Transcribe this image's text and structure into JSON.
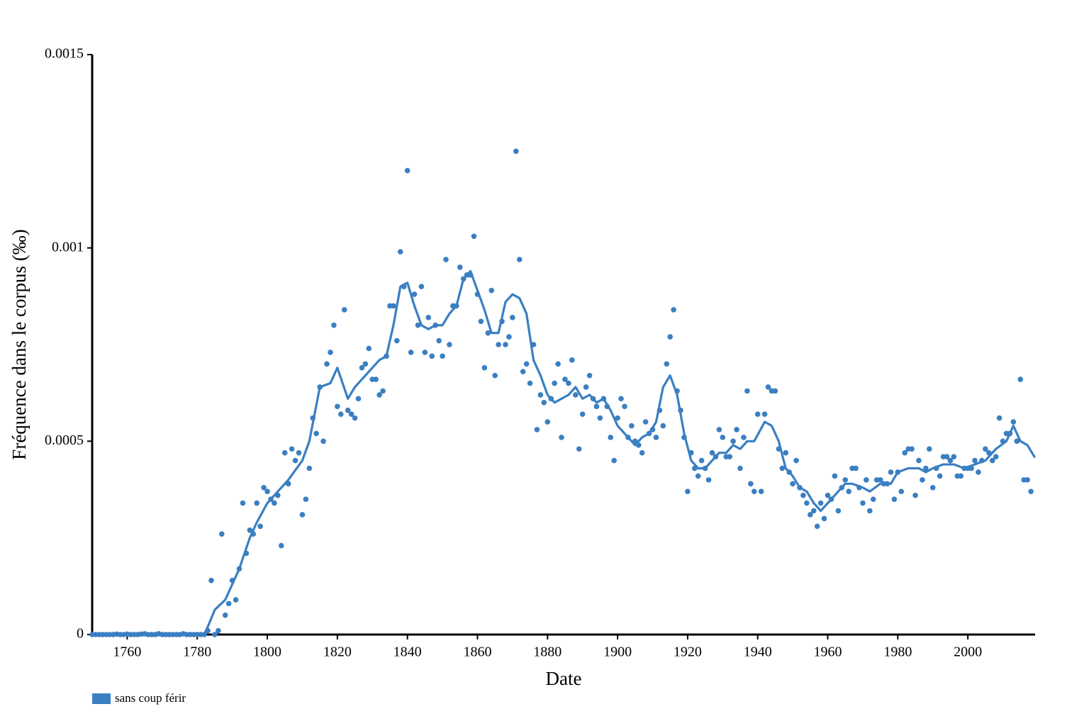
{
  "chart_data": {
    "type": "scatter-line",
    "xlabel": "Date",
    "ylabel": "Fréquence dans le corpus (‰)",
    "xlim": [
      1750,
      2019
    ],
    "xticks": [
      1760,
      1780,
      1800,
      1820,
      1840,
      1860,
      1880,
      1900,
      1920,
      1940,
      1960,
      1980,
      2000
    ],
    "ylim": [
      0,
      0.0015
    ],
    "yticks": [
      0,
      0.0005,
      0.001,
      0.0015
    ],
    "series": [
      {
        "name": "sans coup férir",
        "color": "#3a7fc1",
        "x": [
          1750,
          1751,
          1752,
          1753,
          1754,
          1755,
          1756,
          1757,
          1758,
          1759,
          1760,
          1761,
          1762,
          1763,
          1764,
          1765,
          1766,
          1767,
          1768,
          1769,
          1770,
          1771,
          1772,
          1773,
          1774,
          1775,
          1776,
          1777,
          1778,
          1779,
          1780,
          1781,
          1782,
          1783,
          1784,
          1785,
          1786,
          1787,
          1788,
          1789,
          1790,
          1791,
          1792,
          1793,
          1794,
          1795,
          1796,
          1797,
          1798,
          1799,
          1800,
          1801,
          1802,
          1803,
          1804,
          1805,
          1806,
          1807,
          1808,
          1809,
          1810,
          1811,
          1812,
          1813,
          1814,
          1815,
          1816,
          1817,
          1818,
          1819,
          1820,
          1821,
          1822,
          1823,
          1824,
          1825,
          1826,
          1827,
          1828,
          1829,
          1830,
          1831,
          1832,
          1833,
          1834,
          1835,
          1836,
          1837,
          1838,
          1839,
          1840,
          1841,
          1842,
          1843,
          1844,
          1845,
          1846,
          1847,
          1848,
          1849,
          1850,
          1851,
          1852,
          1853,
          1854,
          1855,
          1856,
          1857,
          1858,
          1859,
          1860,
          1861,
          1862,
          1863,
          1864,
          1865,
          1866,
          1867,
          1868,
          1869,
          1870,
          1871,
          1872,
          1873,
          1874,
          1875,
          1876,
          1877,
          1878,
          1879,
          1880,
          1881,
          1882,
          1883,
          1884,
          1885,
          1886,
          1887,
          1888,
          1889,
          1890,
          1891,
          1892,
          1893,
          1894,
          1895,
          1896,
          1897,
          1898,
          1899,
          1900,
          1901,
          1902,
          1903,
          1904,
          1905,
          1906,
          1907,
          1908,
          1909,
          1910,
          1911,
          1912,
          1913,
          1914,
          1915,
          1916,
          1917,
          1918,
          1919,
          1920,
          1921,
          1922,
          1923,
          1924,
          1925,
          1926,
          1927,
          1928,
          1929,
          1930,
          1931,
          1932,
          1933,
          1934,
          1935,
          1936,
          1937,
          1938,
          1939,
          1940,
          1941,
          1942,
          1943,
          1944,
          1945,
          1946,
          1947,
          1948,
          1949,
          1950,
          1951,
          1952,
          1953,
          1954,
          1955,
          1956,
          1957,
          1958,
          1959,
          1960,
          1961,
          1962,
          1963,
          1964,
          1965,
          1966,
          1967,
          1968,
          1969,
          1970,
          1971,
          1972,
          1973,
          1974,
          1975,
          1976,
          1977,
          1978,
          1979,
          1980,
          1981,
          1982,
          1983,
          1984,
          1985,
          1986,
          1987,
          1988,
          1989,
          1990,
          1991,
          1992,
          1993,
          1994,
          1995,
          1996,
          1997,
          1998,
          1999,
          2000,
          2001,
          2002,
          2003,
          2004,
          2005,
          2006,
          2007,
          2008,
          2009,
          2010,
          2011,
          2012,
          2013,
          2014,
          2015,
          2016,
          2017,
          2018
        ],
        "values": [
          0,
          0,
          0,
          0,
          0,
          0,
          0,
          1e-06,
          0,
          0,
          1e-06,
          0,
          0,
          0,
          1e-06,
          2e-06,
          0,
          0,
          0,
          2e-06,
          0,
          0,
          0,
          0,
          0,
          0,
          2e-06,
          0,
          0,
          0,
          0,
          0,
          0,
          1e-05,
          0.00014,
          0,
          1e-05,
          0.00026,
          5e-05,
          8e-05,
          0.00014,
          9e-05,
          0.00017,
          0.00034,
          0.00021,
          0.00027,
          0.00026,
          0.00034,
          0.00028,
          0.00038,
          0.00037,
          0.00035,
          0.00034,
          0.00036,
          0.00023,
          0.00047,
          0.00039,
          0.00048,
          0.00045,
          0.00047,
          0.00031,
          0.00035,
          0.00043,
          0.00056,
          0.00052,
          0.00064,
          0.0005,
          0.0007,
          0.00073,
          0.0008,
          0.00059,
          0.00057,
          0.00084,
          0.00058,
          0.00057,
          0.00056,
          0.00061,
          0.00069,
          0.0007,
          0.00074,
          0.00066,
          0.00066,
          0.00062,
          0.00063,
          0.00072,
          0.00085,
          0.00085,
          0.00076,
          0.00099,
          0.0009,
          0.0012,
          0.00073,
          0.00088,
          0.0008,
          0.0009,
          0.00073,
          0.00082,
          0.00072,
          0.0008,
          0.00076,
          0.00072,
          0.00097,
          0.00075,
          0.00085,
          0.00085,
          0.00095,
          0.00092,
          0.00093,
          0.00093,
          0.00103,
          0.00088,
          0.00081,
          0.00069,
          0.00078,
          0.00089,
          0.00067,
          0.00075,
          0.00081,
          0.00075,
          0.00077,
          0.00082,
          0.00125,
          0.00097,
          0.00068,
          0.0007,
          0.00065,
          0.00075,
          0.00053,
          0.00062,
          0.0006,
          0.00055,
          0.00061,
          0.00065,
          0.0007,
          0.00051,
          0.00066,
          0.00065,
          0.00071,
          0.00062,
          0.00048,
          0.00057,
          0.00064,
          0.00067,
          0.00061,
          0.00059,
          0.00056,
          0.00061,
          0.00059,
          0.00051,
          0.00045,
          0.00056,
          0.00061,
          0.00059,
          0.00051,
          0.00054,
          0.0005,
          0.00049,
          0.00047,
          0.00055,
          0.00052,
          0.00053,
          0.00051,
          0.00058,
          0.00054,
          0.0007,
          0.00077,
          0.00084,
          0.00063,
          0.00058,
          0.00051,
          0.00037,
          0.00047,
          0.00043,
          0.00041,
          0.00045,
          0.00043,
          0.0004,
          0.00047,
          0.00046,
          0.00053,
          0.00051,
          0.00046,
          0.00046,
          0.0005,
          0.00053,
          0.00043,
          0.00051,
          0.00063,
          0.00039,
          0.00037,
          0.00057,
          0.00037,
          0.00057,
          0.00064,
          0.00063,
          0.00063,
          0.00048,
          0.00043,
          0.00047,
          0.00042,
          0.00039,
          0.00045,
          0.00038,
          0.00036,
          0.00034,
          0.00031,
          0.00032,
          0.00028,
          0.00034,
          0.0003,
          0.00036,
          0.00035,
          0.00041,
          0.00032,
          0.00038,
          0.0004,
          0.00037,
          0.00043,
          0.00043,
          0.00038,
          0.00034,
          0.0004,
          0.00032,
          0.00035,
          0.0004,
          0.0004,
          0.00039,
          0.00039,
          0.00042,
          0.00035,
          0.00042,
          0.00037,
          0.00047,
          0.00048,
          0.00048,
          0.00036,
          0.00045,
          0.0004,
          0.00043,
          0.00048,
          0.00038,
          0.00043,
          0.00041,
          0.00046,
          0.00046,
          0.00045,
          0.00046,
          0.00041,
          0.00041,
          0.00043,
          0.00043,
          0.00043,
          0.00045,
          0.00042,
          0.00045,
          0.00048,
          0.00047,
          0.00045,
          0.00046,
          0.00056,
          0.0005,
          0.00052,
          0.00052,
          0.00055,
          0.0005,
          0.00066,
          0.0004,
          0.0004,
          0.00037
        ],
        "line_x": [
          1750,
          1770,
          1782,
          1783,
          1785,
          1788,
          1790,
          1792,
          1795,
          1797,
          1800,
          1803,
          1806,
          1810,
          1812,
          1815,
          1818,
          1820,
          1823,
          1825,
          1828,
          1832,
          1834,
          1836,
          1838,
          1840,
          1842,
          1844,
          1846,
          1848,
          1850,
          1852,
          1854,
          1856,
          1858,
          1860,
          1862,
          1864,
          1866,
          1868,
          1870,
          1872,
          1874,
          1876,
          1878,
          1880,
          1882,
          1884,
          1886,
          1888,
          1890,
          1892,
          1894,
          1896,
          1898,
          1900,
          1903,
          1905,
          1907,
          1909,
          1911,
          1913,
          1915,
          1917,
          1919,
          1921,
          1923,
          1925,
          1927,
          1929,
          1931,
          1933,
          1935,
          1937,
          1939,
          1942,
          1944,
          1946,
          1948,
          1950,
          1952,
          1954,
          1956,
          1958,
          1960,
          1963,
          1965,
          1967,
          1970,
          1972,
          1975,
          1978,
          1980,
          1983,
          1986,
          1988,
          1990,
          1993,
          1996,
          1999,
          2002,
          2005,
          2008,
          2011,
          2013,
          2015,
          2017,
          2019
        ],
        "line_values": [
          0,
          0,
          1e-06,
          2e-05,
          6.4e-05,
          9e-05,
          0.00013,
          0.00017,
          0.00025,
          0.00029,
          0.00034,
          0.00037,
          0.0004,
          0.00045,
          0.0005,
          0.00064,
          0.00065,
          0.00069,
          0.00061,
          0.00064,
          0.00067,
          0.00071,
          0.00072,
          0.0008,
          0.0009,
          0.00091,
          0.00085,
          0.0008,
          0.00079,
          0.0008,
          0.0008,
          0.00083,
          0.00085,
          0.00092,
          0.00094,
          0.00089,
          0.00084,
          0.00078,
          0.00078,
          0.00086,
          0.00088,
          0.00087,
          0.00083,
          0.00071,
          0.00067,
          0.00062,
          0.0006,
          0.00061,
          0.00062,
          0.00064,
          0.00061,
          0.00062,
          0.0006,
          0.00061,
          0.00058,
          0.00054,
          0.00051,
          0.00049,
          0.00051,
          0.00052,
          0.00055,
          0.00064,
          0.00067,
          0.00062,
          0.00052,
          0.00045,
          0.00043,
          0.00043,
          0.00045,
          0.00047,
          0.00047,
          0.00049,
          0.00048,
          0.0005,
          0.0005,
          0.00055,
          0.00054,
          0.0005,
          0.00043,
          0.00041,
          0.00038,
          0.00037,
          0.00034,
          0.00032,
          0.00034,
          0.00037,
          0.00039,
          0.00039,
          0.00038,
          0.00037,
          0.00039,
          0.00039,
          0.00042,
          0.00043,
          0.00043,
          0.00042,
          0.00043,
          0.00044,
          0.00044,
          0.00043,
          0.00044,
          0.00045,
          0.00048,
          0.0005,
          0.00054,
          0.0005,
          0.00049,
          0.00046
        ]
      }
    ]
  }
}
